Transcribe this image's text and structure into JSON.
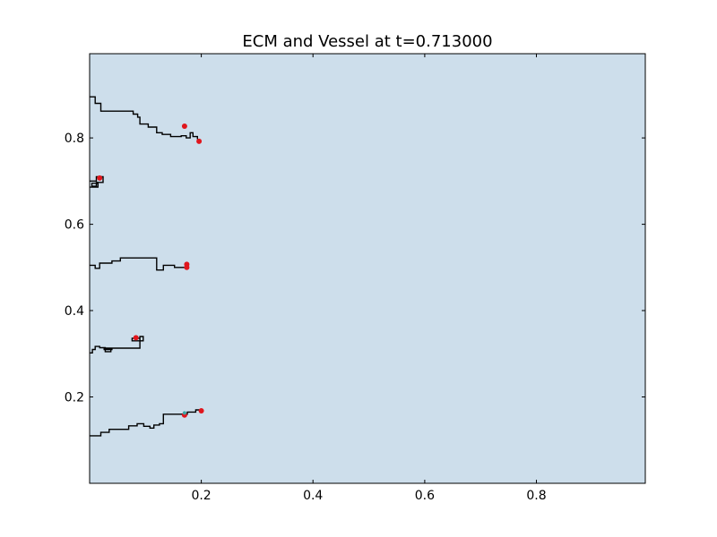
{
  "chart_data": {
    "type": "line",
    "title": "ECM and Vessel at t=0.713000",
    "xlabel": "",
    "ylabel": "",
    "xlim": [
      0.0,
      0.995
    ],
    "ylim": [
      0.0,
      0.995
    ],
    "xticks": [
      0.2,
      0.4,
      0.6,
      0.8
    ],
    "yticks": [
      0.2,
      0.4,
      0.6,
      0.8
    ],
    "xtick_labels": [
      "0.2",
      "0.4",
      "0.6",
      "0.8"
    ],
    "ytick_labels": [
      "0.2",
      "0.4",
      "0.6",
      "0.8"
    ],
    "grid": false,
    "legend": "none",
    "background_color": "#cddeeb",
    "vessel_color": "#000000",
    "tip_color": "#e0161d",
    "tip_alt_color": "#3aa6a6",
    "vessels": [
      {
        "points": [
          [
            0.0,
            0.895
          ],
          [
            0.01,
            0.895
          ],
          [
            0.01,
            0.88
          ],
          [
            0.02,
            0.88
          ],
          [
            0.02,
            0.862
          ],
          [
            0.078,
            0.862
          ],
          [
            0.078,
            0.855
          ],
          [
            0.086,
            0.855
          ],
          [
            0.086,
            0.848
          ],
          [
            0.09,
            0.848
          ],
          [
            0.09,
            0.832
          ],
          [
            0.105,
            0.832
          ],
          [
            0.105,
            0.825
          ],
          [
            0.12,
            0.825
          ],
          [
            0.12,
            0.812
          ],
          [
            0.13,
            0.812
          ],
          [
            0.13,
            0.808
          ],
          [
            0.145,
            0.808
          ],
          [
            0.145,
            0.803
          ],
          [
            0.164,
            0.803
          ],
          [
            0.164,
            0.805
          ],
          [
            0.173,
            0.805
          ],
          [
            0.173,
            0.8
          ],
          [
            0.18,
            0.8
          ],
          [
            0.18,
            0.812
          ],
          [
            0.185,
            0.812
          ],
          [
            0.185,
            0.803
          ],
          [
            0.193,
            0.803
          ],
          [
            0.193,
            0.797
          ]
        ]
      },
      {
        "points": [
          [
            0.0,
            0.7
          ],
          [
            0.012,
            0.7
          ],
          [
            0.012,
            0.71
          ],
          [
            0.024,
            0.71
          ],
          [
            0.024,
            0.697
          ],
          [
            0.012,
            0.697
          ],
          [
            0.012,
            0.688
          ],
          [
            0.004,
            0.688
          ],
          [
            0.004,
            0.695
          ],
          [
            0.015,
            0.695
          ],
          [
            0.015,
            0.686
          ],
          [
            0.0,
            0.686
          ]
        ]
      },
      {
        "points": [
          [
            0.0,
            0.505
          ],
          [
            0.01,
            0.505
          ],
          [
            0.01,
            0.498
          ],
          [
            0.018,
            0.498
          ],
          [
            0.018,
            0.51
          ],
          [
            0.04,
            0.51
          ],
          [
            0.04,
            0.515
          ],
          [
            0.055,
            0.515
          ],
          [
            0.055,
            0.522
          ],
          [
            0.12,
            0.522
          ],
          [
            0.12,
            0.494
          ],
          [
            0.132,
            0.494
          ],
          [
            0.132,
            0.505
          ],
          [
            0.152,
            0.505
          ],
          [
            0.152,
            0.5
          ],
          [
            0.174,
            0.5
          ],
          [
            0.174,
            0.51
          ]
        ]
      },
      {
        "points": [
          [
            0.0,
            0.302
          ],
          [
            0.005,
            0.302
          ],
          [
            0.005,
            0.31
          ],
          [
            0.01,
            0.31
          ],
          [
            0.01,
            0.317
          ],
          [
            0.018,
            0.317
          ],
          [
            0.018,
            0.314
          ],
          [
            0.028,
            0.314
          ],
          [
            0.028,
            0.305
          ],
          [
            0.038,
            0.305
          ],
          [
            0.038,
            0.313
          ],
          [
            0.026,
            0.313
          ],
          [
            0.026,
            0.31
          ],
          [
            0.04,
            0.31
          ],
          [
            0.04,
            0.313
          ],
          [
            0.09,
            0.313
          ],
          [
            0.09,
            0.34
          ],
          [
            0.096,
            0.34
          ],
          [
            0.096,
            0.33
          ],
          [
            0.076,
            0.33
          ],
          [
            0.076,
            0.336
          ],
          [
            0.09,
            0.336
          ]
        ]
      },
      {
        "points": [
          [
            0.0,
            0.11
          ],
          [
            0.02,
            0.11
          ],
          [
            0.02,
            0.118
          ],
          [
            0.035,
            0.118
          ],
          [
            0.035,
            0.125
          ],
          [
            0.07,
            0.125
          ],
          [
            0.07,
            0.133
          ],
          [
            0.085,
            0.133
          ],
          [
            0.085,
            0.138
          ],
          [
            0.097,
            0.138
          ],
          [
            0.097,
            0.132
          ],
          [
            0.108,
            0.132
          ],
          [
            0.108,
            0.128
          ],
          [
            0.115,
            0.128
          ],
          [
            0.115,
            0.135
          ],
          [
            0.125,
            0.135
          ],
          [
            0.125,
            0.138
          ],
          [
            0.132,
            0.138
          ],
          [
            0.132,
            0.16
          ],
          [
            0.175,
            0.16
          ],
          [
            0.175,
            0.165
          ],
          [
            0.19,
            0.165
          ],
          [
            0.19,
            0.17
          ],
          [
            0.2,
            0.17
          ]
        ]
      }
    ],
    "tips": [
      {
        "x": 0.17,
        "y": 0.827,
        "kind": "red"
      },
      {
        "x": 0.196,
        "y": 0.792,
        "kind": "red"
      },
      {
        "x": 0.018,
        "y": 0.707,
        "kind": "red"
      },
      {
        "x": 0.174,
        "y": 0.507,
        "kind": "red"
      },
      {
        "x": 0.174,
        "y": 0.5,
        "kind": "red"
      },
      {
        "x": 0.083,
        "y": 0.337,
        "kind": "red"
      },
      {
        "x": 0.2,
        "y": 0.168,
        "kind": "red"
      },
      {
        "x": 0.17,
        "y": 0.158,
        "kind": "red"
      },
      {
        "x": 0.17,
        "y": 0.163,
        "kind": "teal"
      }
    ]
  }
}
